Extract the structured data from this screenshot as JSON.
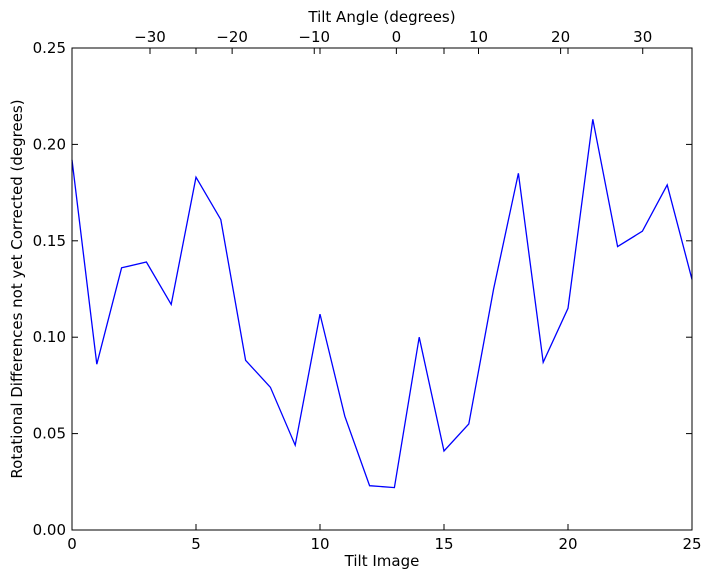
{
  "chart_data": {
    "type": "line",
    "title": "",
    "xlabel": "Tilt Image",
    "ylabel": "Rotational Differences not yet Corrected (degrees)",
    "x2label": "Tilt Angle (degrees)",
    "xlim": [
      0,
      25
    ],
    "ylim": [
      0,
      0.25
    ],
    "x2lim": [
      -39.5,
      36
    ],
    "xticks": [
      0,
      5,
      10,
      15,
      20,
      25
    ],
    "yticks": [
      0.0,
      0.05,
      0.1,
      0.15,
      0.2,
      0.25
    ],
    "x2ticks": [
      -30,
      -20,
      -10,
      0,
      10,
      20,
      30
    ],
    "xtick_labels": [
      "0",
      "5",
      "10",
      "15",
      "20",
      "25"
    ],
    "ytick_labels": [
      "0.00",
      "0.05",
      "0.10",
      "0.15",
      "0.20",
      "0.25"
    ],
    "x2tick_labels": [
      "−30",
      "−20",
      "−10",
      "0",
      "10",
      "20",
      "30"
    ],
    "grid": false,
    "line_color": "#0000ff",
    "x": [
      0,
      1,
      2,
      3,
      4,
      5,
      6,
      7,
      8,
      9,
      10,
      11,
      12,
      13,
      14,
      15,
      16,
      17,
      18,
      19,
      20,
      21,
      22,
      23,
      24,
      25
    ],
    "y": [
      0.192,
      0.086,
      0.136,
      0.139,
      0.117,
      0.183,
      0.161,
      0.088,
      0.074,
      0.044,
      0.112,
      0.059,
      0.023,
      0.022,
      0.1,
      0.041,
      0.055,
      0.125,
      0.185,
      0.087,
      0.115,
      0.213,
      0.147,
      0.155,
      0.179,
      0.13
    ]
  }
}
